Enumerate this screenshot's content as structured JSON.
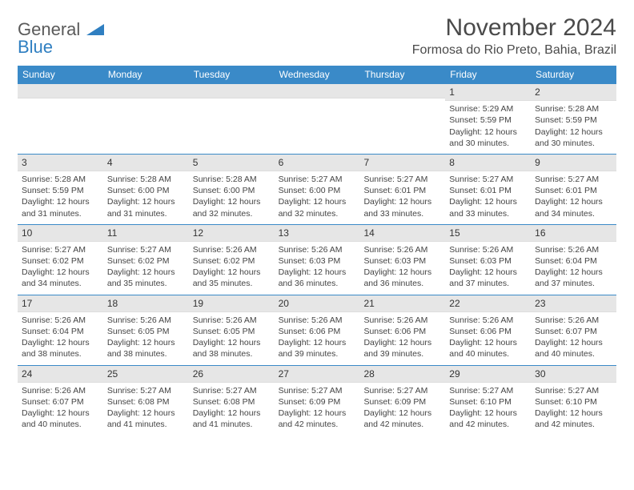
{
  "logo": {
    "general": "General",
    "blue": "Blue"
  },
  "title": "November 2024",
  "location": "Formosa do Rio Preto, Bahia, Brazil",
  "colors": {
    "header_bg": "#3a8ac8",
    "header_text": "#ffffff",
    "dayband_bg": "#e6e6e6",
    "text": "#444444",
    "rule": "#3a8ac8",
    "logo_gray": "#5a5a5a",
    "logo_blue": "#2f7fc1"
  },
  "weekdays": [
    "Sunday",
    "Monday",
    "Tuesday",
    "Wednesday",
    "Thursday",
    "Friday",
    "Saturday"
  ],
  "weeks": [
    [
      {
        "day": "",
        "sunrise": "",
        "sunset": "",
        "daylight": ""
      },
      {
        "day": "",
        "sunrise": "",
        "sunset": "",
        "daylight": ""
      },
      {
        "day": "",
        "sunrise": "",
        "sunset": "",
        "daylight": ""
      },
      {
        "day": "",
        "sunrise": "",
        "sunset": "",
        "daylight": ""
      },
      {
        "day": "",
        "sunrise": "",
        "sunset": "",
        "daylight": ""
      },
      {
        "day": "1",
        "sunrise": "Sunrise: 5:29 AM",
        "sunset": "Sunset: 5:59 PM",
        "daylight": "Daylight: 12 hours and 30 minutes."
      },
      {
        "day": "2",
        "sunrise": "Sunrise: 5:28 AM",
        "sunset": "Sunset: 5:59 PM",
        "daylight": "Daylight: 12 hours and 30 minutes."
      }
    ],
    [
      {
        "day": "3",
        "sunrise": "Sunrise: 5:28 AM",
        "sunset": "Sunset: 5:59 PM",
        "daylight": "Daylight: 12 hours and 31 minutes."
      },
      {
        "day": "4",
        "sunrise": "Sunrise: 5:28 AM",
        "sunset": "Sunset: 6:00 PM",
        "daylight": "Daylight: 12 hours and 31 minutes."
      },
      {
        "day": "5",
        "sunrise": "Sunrise: 5:28 AM",
        "sunset": "Sunset: 6:00 PM",
        "daylight": "Daylight: 12 hours and 32 minutes."
      },
      {
        "day": "6",
        "sunrise": "Sunrise: 5:27 AM",
        "sunset": "Sunset: 6:00 PM",
        "daylight": "Daylight: 12 hours and 32 minutes."
      },
      {
        "day": "7",
        "sunrise": "Sunrise: 5:27 AM",
        "sunset": "Sunset: 6:01 PM",
        "daylight": "Daylight: 12 hours and 33 minutes."
      },
      {
        "day": "8",
        "sunrise": "Sunrise: 5:27 AM",
        "sunset": "Sunset: 6:01 PM",
        "daylight": "Daylight: 12 hours and 33 minutes."
      },
      {
        "day": "9",
        "sunrise": "Sunrise: 5:27 AM",
        "sunset": "Sunset: 6:01 PM",
        "daylight": "Daylight: 12 hours and 34 minutes."
      }
    ],
    [
      {
        "day": "10",
        "sunrise": "Sunrise: 5:27 AM",
        "sunset": "Sunset: 6:02 PM",
        "daylight": "Daylight: 12 hours and 34 minutes."
      },
      {
        "day": "11",
        "sunrise": "Sunrise: 5:27 AM",
        "sunset": "Sunset: 6:02 PM",
        "daylight": "Daylight: 12 hours and 35 minutes."
      },
      {
        "day": "12",
        "sunrise": "Sunrise: 5:26 AM",
        "sunset": "Sunset: 6:02 PM",
        "daylight": "Daylight: 12 hours and 35 minutes."
      },
      {
        "day": "13",
        "sunrise": "Sunrise: 5:26 AM",
        "sunset": "Sunset: 6:03 PM",
        "daylight": "Daylight: 12 hours and 36 minutes."
      },
      {
        "day": "14",
        "sunrise": "Sunrise: 5:26 AM",
        "sunset": "Sunset: 6:03 PM",
        "daylight": "Daylight: 12 hours and 36 minutes."
      },
      {
        "day": "15",
        "sunrise": "Sunrise: 5:26 AM",
        "sunset": "Sunset: 6:03 PM",
        "daylight": "Daylight: 12 hours and 37 minutes."
      },
      {
        "day": "16",
        "sunrise": "Sunrise: 5:26 AM",
        "sunset": "Sunset: 6:04 PM",
        "daylight": "Daylight: 12 hours and 37 minutes."
      }
    ],
    [
      {
        "day": "17",
        "sunrise": "Sunrise: 5:26 AM",
        "sunset": "Sunset: 6:04 PM",
        "daylight": "Daylight: 12 hours and 38 minutes."
      },
      {
        "day": "18",
        "sunrise": "Sunrise: 5:26 AM",
        "sunset": "Sunset: 6:05 PM",
        "daylight": "Daylight: 12 hours and 38 minutes."
      },
      {
        "day": "19",
        "sunrise": "Sunrise: 5:26 AM",
        "sunset": "Sunset: 6:05 PM",
        "daylight": "Daylight: 12 hours and 38 minutes."
      },
      {
        "day": "20",
        "sunrise": "Sunrise: 5:26 AM",
        "sunset": "Sunset: 6:06 PM",
        "daylight": "Daylight: 12 hours and 39 minutes."
      },
      {
        "day": "21",
        "sunrise": "Sunrise: 5:26 AM",
        "sunset": "Sunset: 6:06 PM",
        "daylight": "Daylight: 12 hours and 39 minutes."
      },
      {
        "day": "22",
        "sunrise": "Sunrise: 5:26 AM",
        "sunset": "Sunset: 6:06 PM",
        "daylight": "Daylight: 12 hours and 40 minutes."
      },
      {
        "day": "23",
        "sunrise": "Sunrise: 5:26 AM",
        "sunset": "Sunset: 6:07 PM",
        "daylight": "Daylight: 12 hours and 40 minutes."
      }
    ],
    [
      {
        "day": "24",
        "sunrise": "Sunrise: 5:26 AM",
        "sunset": "Sunset: 6:07 PM",
        "daylight": "Daylight: 12 hours and 40 minutes."
      },
      {
        "day": "25",
        "sunrise": "Sunrise: 5:27 AM",
        "sunset": "Sunset: 6:08 PM",
        "daylight": "Daylight: 12 hours and 41 minutes."
      },
      {
        "day": "26",
        "sunrise": "Sunrise: 5:27 AM",
        "sunset": "Sunset: 6:08 PM",
        "daylight": "Daylight: 12 hours and 41 minutes."
      },
      {
        "day": "27",
        "sunrise": "Sunrise: 5:27 AM",
        "sunset": "Sunset: 6:09 PM",
        "daylight": "Daylight: 12 hours and 42 minutes."
      },
      {
        "day": "28",
        "sunrise": "Sunrise: 5:27 AM",
        "sunset": "Sunset: 6:09 PM",
        "daylight": "Daylight: 12 hours and 42 minutes."
      },
      {
        "day": "29",
        "sunrise": "Sunrise: 5:27 AM",
        "sunset": "Sunset: 6:10 PM",
        "daylight": "Daylight: 12 hours and 42 minutes."
      },
      {
        "day": "30",
        "sunrise": "Sunrise: 5:27 AM",
        "sunset": "Sunset: 6:10 PM",
        "daylight": "Daylight: 12 hours and 42 minutes."
      }
    ]
  ]
}
